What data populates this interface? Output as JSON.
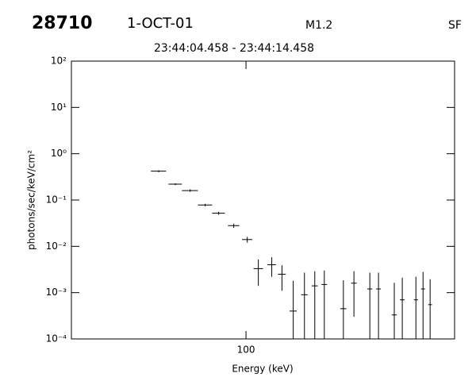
{
  "header": {
    "id": "28710",
    "date": "1-OCT-01",
    "class": "M1.2",
    "flag": "SF",
    "time_range": "23:44:04.458 - 23:44:14.458"
  },
  "chart_data": {
    "type": "scatter",
    "x_label": "Energy (keV)",
    "y_label": "photons/sec/keV/cm²",
    "x": [
      51,
      58,
      65,
      73,
      81,
      91,
      101,
      110,
      122,
      132,
      144,
      157,
      170,
      183,
      212,
      230,
      260,
      278,
      314,
      334,
      371,
      392,
      414
    ],
    "xerr": [
      3,
      3,
      4,
      4,
      4,
      4,
      4,
      4,
      4,
      4,
      4,
      4,
      4,
      4,
      5,
      5,
      5,
      5,
      6,
      6,
      6,
      6,
      6
    ],
    "values": [
      0.42,
      0.22,
      0.16,
      0.078,
      0.052,
      0.028,
      0.014,
      0.0033,
      0.004,
      0.0025,
      0.0004,
      0.0009,
      0.0014,
      0.0015,
      0.00045,
      0.0016,
      0.0012,
      0.0012,
      0.00033,
      0.0007,
      0.0007,
      0.0012,
      0.00055
    ],
    "yerr": [
      0.02,
      0.01,
      0.01,
      0.005,
      0.004,
      0.003,
      0.002,
      0.0019,
      0.0018,
      0.0014,
      0.0014,
      0.0018,
      0.0015,
      0.0015,
      0.0014,
      0.0013,
      0.0015,
      0.0015,
      0.0013,
      0.0014,
      0.0015,
      0.0016,
      0.0014
    ],
    "color": "#000000",
    "xscale": "log",
    "yscale": "log",
    "xlim": [
      26,
      500
    ],
    "ylim": [
      0.0001,
      100
    ],
    "xticks": [
      100
    ],
    "yticks": [
      {
        "value": 100,
        "label": "10²"
      },
      {
        "value": 10,
        "label": "10¹"
      },
      {
        "value": 1,
        "label": "10⁰"
      },
      {
        "value": 0.1,
        "label": "10⁻¹"
      },
      {
        "value": 0.01,
        "label": "10⁻²"
      },
      {
        "value": 0.001,
        "label": "10⁻³"
      },
      {
        "value": 0.0001,
        "label": "10⁻⁴"
      }
    ]
  }
}
